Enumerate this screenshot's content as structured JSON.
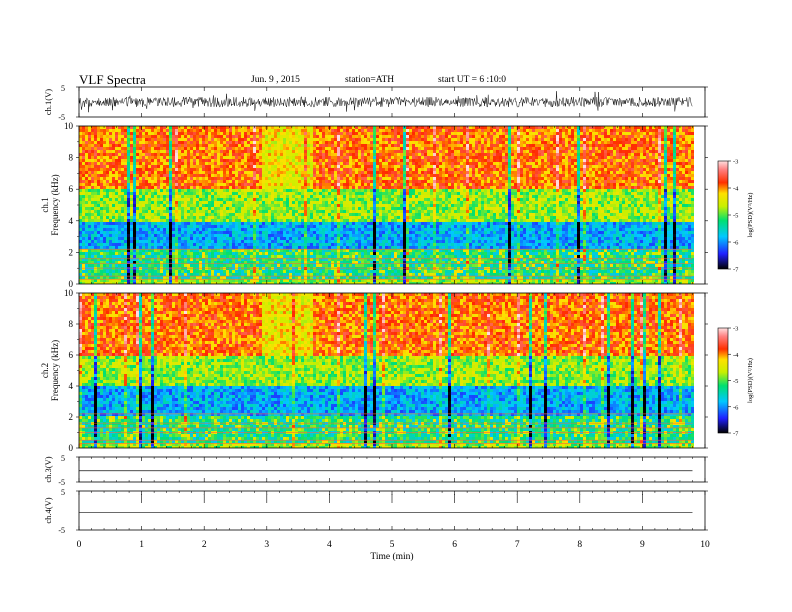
{
  "header": {
    "title": "VLF Spectra",
    "date": "Jun. 9 , 2015",
    "station": "station=ATH",
    "start": "start UT = 6 :10:0"
  },
  "chart_data": [
    {
      "type": "line",
      "name": "ch1-waveform",
      "ylabel": "ch.1(V)",
      "ylim": [
        -5,
        5
      ],
      "yticks": [
        "5",
        "-5"
      ],
      "x": [
        0,
        9.8
      ],
      "description_note": ""
    },
    {
      "type": "heatmap",
      "name": "ch1-spectrogram",
      "ylabel": "ch.1\nFrequency (kHz)",
      "ylabel_lines": [
        "ch.1",
        "Frequency (kHz)"
      ],
      "ylim": [
        0,
        10
      ],
      "yticks": [
        "0",
        "2",
        "4",
        "6",
        "8",
        "10"
      ],
      "colorbar": {
        "label": "log(PSD)(V²/Hz)",
        "ticks": [
          "-3",
          "-4",
          "-5",
          "-6",
          "-7"
        ],
        "range": [
          -7,
          -3
        ]
      }
    },
    {
      "type": "heatmap",
      "name": "ch2-spectrogram",
      "ylabel_lines": [
        "ch.2",
        "Frequency (kHz)"
      ],
      "ylim": [
        0,
        10
      ],
      "yticks": [
        "0",
        "2",
        "4",
        "6",
        "8",
        "10"
      ],
      "colorbar": {
        "label": "log(PSD)(V²/Hz)",
        "ticks": [
          "-3",
          "-4",
          "-5",
          "-6",
          "-7"
        ],
        "range": [
          -7,
          -3
        ]
      }
    },
    {
      "type": "line",
      "name": "ch3-waveform",
      "ylabel": "ch.3(V)",
      "ylim": [
        -5,
        5
      ],
      "yticks": [
        "5",
        "-5"
      ]
    },
    {
      "type": "line",
      "name": "ch4-waveform",
      "ylabel": "ch.4(V)",
      "ylim": [
        -5,
        5
      ],
      "yticks": [
        "5",
        "-5"
      ],
      "xlabel": "Time (min)",
      "xlim": [
        0,
        10
      ],
      "xticks": [
        "0",
        "1",
        "2",
        "3",
        "4",
        "5",
        "6",
        "7",
        "8",
        "9",
        "10"
      ]
    }
  ],
  "colors": {
    "colormap": [
      "#000000",
      "#2020ff",
      "#00c8ff",
      "#00e070",
      "#c8f000",
      "#ffe000",
      "#ff3000",
      "#ffb0b0"
    ]
  }
}
